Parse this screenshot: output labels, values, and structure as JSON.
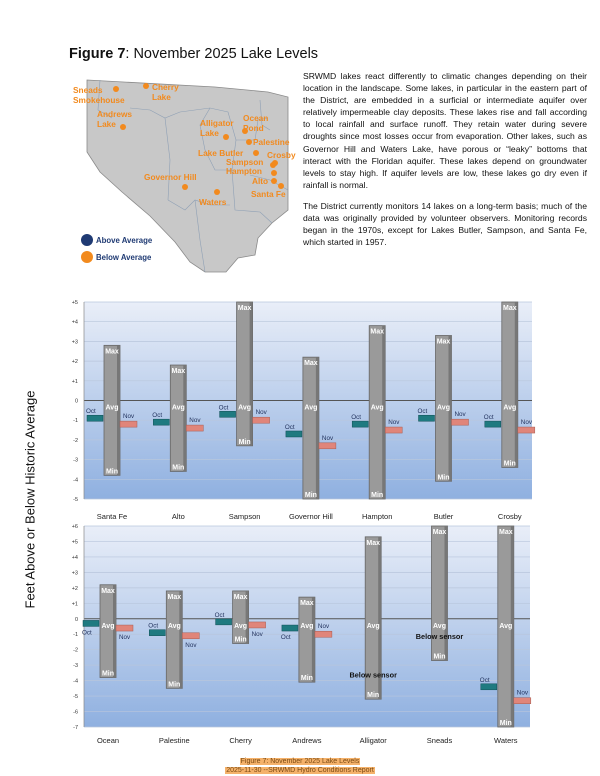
{
  "figure": {
    "label": "Figure 7",
    "title": ": November 2025 Lake Levels"
  },
  "paragraphs": [
    "SRWMD lakes react differently to climatic changes depending on their location in the landscape.  Some lakes, in particular in the eastern part of the District, are embedded in a surficial or intermediate aquifer over relatively impermeable clay deposits. These lakes rise and fall according to local rainfall and surface runoff.  They retain water during severe droughts since most losses occur from evaporation. Other lakes, such as Governor Hill and Waters Lake, have porous or “leaky” bottoms that interact with the Floridan aquifer. These lakes depend on groundwater levels to stay high. If aquifer levels are low, these lakes go dry even if rainfall is normal.",
    "The District currently monitors 14 lakes on a long-term basis; much of the data was originally provided by volunteer observers. Monitoring records began in the 1970s, except for Lakes Butler, Sampson, and Santa Fe, which started in 1957."
  ],
  "map": {
    "colors": {
      "above": "#1f3a73",
      "below": "#f28a1e",
      "land": "#c8c8c8"
    },
    "legend": [
      {
        "label": "Above Average",
        "status": "above"
      },
      {
        "label": "Below Average",
        "status": "below"
      }
    ],
    "lakes": [
      {
        "label": "Sneads\nSmokehouse",
        "status": "below"
      },
      {
        "label": "Cherry\nLake",
        "status": "below"
      },
      {
        "label": "Andrews\nLake",
        "status": "below"
      },
      {
        "label": "Alligator\nLake",
        "status": "below"
      },
      {
        "label": "Ocean\nPond",
        "status": "below"
      },
      {
        "label": "Palestine",
        "status": "below"
      },
      {
        "label": "Lake Butler",
        "status": "below"
      },
      {
        "label": "Crosby",
        "status": "below"
      },
      {
        "label": "Sampson",
        "status": "below"
      },
      {
        "label": "Hampton",
        "status": "below"
      },
      {
        "label": "Alto",
        "status": "below"
      },
      {
        "label": "Santa Fe",
        "status": "below"
      },
      {
        "label": "Governor Hill",
        "status": "below"
      },
      {
        "label": "Waters",
        "status": "below"
      }
    ]
  },
  "chart_data": [
    {
      "type": "bar",
      "ylabel": "Feet Above or Below Historic Average",
      "ylim": [
        -5,
        5
      ],
      "yticks": [
        "+5",
        "+4",
        "+3",
        "+2",
        "+1",
        "0",
        "-1",
        "-2",
        "-3",
        "-4",
        "-5"
      ],
      "grid": true,
      "bar_labels": {
        "max": "Max",
        "avg": "Avg",
        "min": "Min",
        "oct": "Oct",
        "nov": "Nov"
      },
      "colors": {
        "range": "#9a9a9a",
        "oct": "#1f7a80",
        "nov": "#e0857a"
      },
      "categories": [
        "Santa Fe",
        "Alto",
        "Sampson",
        "Governor Hill",
        "Hampton",
        "Butler",
        "Crosby"
      ],
      "max": [
        2.8,
        1.8,
        5.0,
        2.2,
        3.8,
        3.3,
        5.0
      ],
      "min": [
        -3.8,
        -3.6,
        -2.3,
        -5.0,
        -5.0,
        -4.1,
        -3.4
      ],
      "oct": [
        -0.9,
        -1.1,
        -0.7,
        -1.7,
        -1.2,
        -0.9,
        -1.2
      ],
      "nov": [
        -1.2,
        -1.4,
        -1.0,
        -2.3,
        -1.5,
        -1.1,
        -1.5
      ],
      "annotations": [
        null,
        null,
        null,
        null,
        null,
        null,
        null
      ]
    },
    {
      "type": "bar",
      "ylabel": "Feet Above or Below Historic Average",
      "ylim": [
        -7,
        6
      ],
      "yticks": [
        "+6",
        "+5",
        "+4",
        "+3",
        "+2",
        "+1",
        "0",
        "-1",
        "-2",
        "-3",
        "-4",
        "-5",
        "-6",
        "-7"
      ],
      "grid": true,
      "bar_labels": {
        "max": "Max",
        "avg": "Avg",
        "min": "Min",
        "oct": "Oct",
        "nov": "Nov"
      },
      "colors": {
        "range": "#9a9a9a",
        "oct": "#1f7a80",
        "nov": "#e0857a"
      },
      "categories": [
        "Ocean",
        "Palestine",
        "Cherry",
        "Andrews",
        "Alligator",
        "Sneads",
        "Waters"
      ],
      "max": [
        2.2,
        1.8,
        1.8,
        1.4,
        5.3,
        6.0,
        6.0
      ],
      "min": [
        -3.8,
        -4.5,
        -1.6,
        -4.1,
        -5.2,
        -2.7,
        -7.0
      ],
      "oct": [
        -0.3,
        -0.9,
        -0.2,
        -0.6,
        null,
        null,
        -4.4
      ],
      "nov": [
        -0.6,
        -1.1,
        -0.4,
        -1.0,
        null,
        null,
        -5.3
      ],
      "annotations": [
        null,
        null,
        null,
        null,
        "Below sensor",
        "Below sensor",
        null
      ]
    }
  ],
  "footer": {
    "line1": "Figure 7: November 2025 Lake Levels",
    "line2": "2025-11-30 --SRWMD Hydro Conditions Report"
  }
}
